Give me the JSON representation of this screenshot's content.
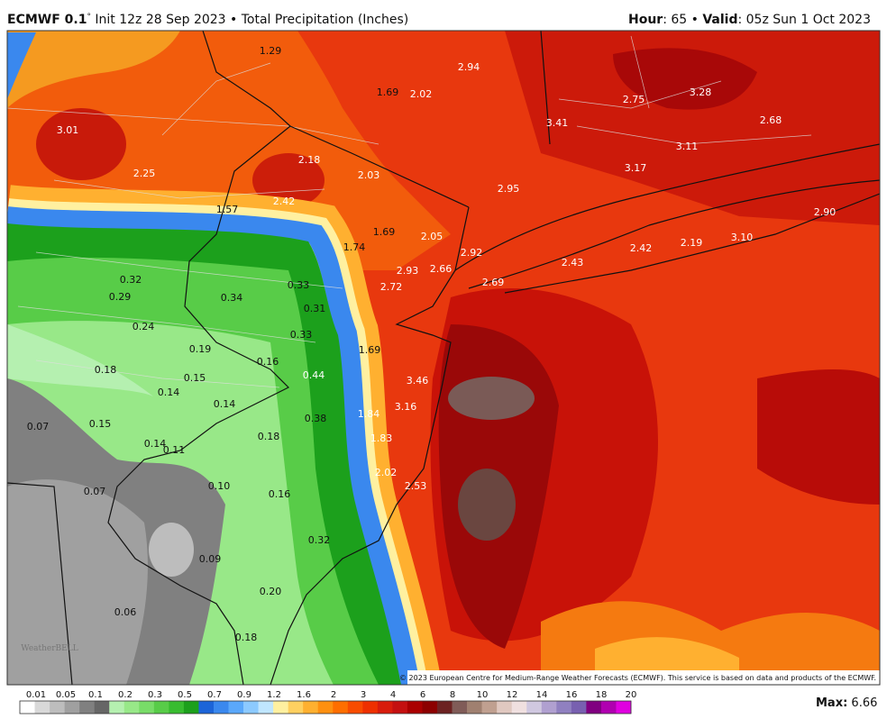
{
  "header": {
    "model": "ECMWF 0.1",
    "degree": "°",
    "subtitle": " Init 12z 28 Sep 2023 • Total Precipitation (Inches)",
    "hour_label": "Hour",
    "hour_value": ": 65 • ",
    "valid_label": "Valid",
    "valid_value": ": 05z Sun 1 Oct 2023"
  },
  "labels": [
    "1.29",
    "2.94",
    "1.69",
    "2.02",
    "2.75",
    "3.28",
    "3.01",
    "3.41",
    "2.68",
    "3.11",
    "2.18",
    "3.17",
    "2.25",
    "2.03",
    "2.95",
    "2.42",
    "1.57",
    "2.90",
    "1.69",
    "2.05",
    "3.10",
    "2.19",
    "2.42",
    "1.74",
    "2.92",
    "2.43",
    "2.93",
    "2.66",
    "0.32",
    "2.69",
    "0.33",
    "2.72",
    "0.29",
    "0.34",
    "0.31",
    "0.24",
    "0.33",
    "1.69",
    "0.19",
    "0.16",
    "0.18",
    "0.15",
    "0.44",
    "3.46",
    "0.14",
    "0.14",
    "3.16",
    "1.84",
    "0.38",
    "0.07",
    "0.15",
    "0.18",
    "1.83",
    "0.14",
    "0.11",
    "2.02",
    "2.53",
    "0.10",
    "0.07",
    "0.16",
    "0.32",
    "0.09",
    "0.20",
    "0.06",
    "0.18"
  ],
  "copyright": "© 2023 European Centre for Medium-Range Weather Forecasts (ECMWF). This service is based on data and products of the ECMWF.",
  "watermark": "WeatherBELL",
  "legend": {
    "ticks": [
      "0.01",
      "0.05",
      "0.1",
      "0.2",
      "0.3",
      "0.5",
      "0.7",
      "0.9",
      "1.2",
      "1.6",
      "2",
      "3",
      "4",
      "6",
      "8",
      "10",
      "12",
      "14",
      "16",
      "18",
      "20"
    ],
    "colors": [
      "#ffffff",
      "#d9d9d9",
      "#bdbdbd",
      "#a0a0a0",
      "#808080",
      "#666666",
      "#b5f0b0",
      "#98e888",
      "#78dc68",
      "#58cc48",
      "#38bc30",
      "#1ca01c",
      "#1c64d8",
      "#3a88ee",
      "#5aa8fa",
      "#8ccaff",
      "#c0e6ff",
      "#fff0a0",
      "#ffd060",
      "#ffb030",
      "#ff9010",
      "#ff6e00",
      "#f84c00",
      "#ee3000",
      "#d81c0c",
      "#c41010",
      "#aa0000",
      "#8c0000",
      "#6c2222",
      "#805c58",
      "#a08070",
      "#c0a090",
      "#e0c8c0",
      "#f0e0e0",
      "#d0c8e0",
      "#b0a0d0",
      "#9080c0",
      "#7860b0",
      "#800080",
      "#b000b0",
      "#e000e0"
    ]
  },
  "max_label": "Max:",
  "max_value": " 6.66"
}
